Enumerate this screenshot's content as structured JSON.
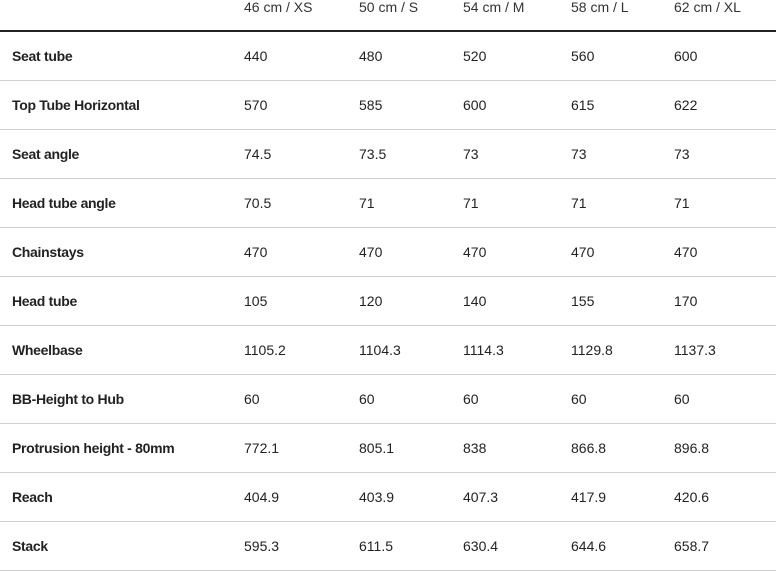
{
  "table": {
    "headers": [
      "46 cm / XS",
      "50 cm / S",
      "54 cm / M",
      "58 cm / L",
      "62 cm / XL"
    ],
    "rows": [
      {
        "label": "Seat tube",
        "values": [
          "440",
          "480",
          "520",
          "560",
          "600"
        ]
      },
      {
        "label": "Top Tube Horizontal",
        "values": [
          "570",
          "585",
          "600",
          "615",
          "622"
        ]
      },
      {
        "label": "Seat angle",
        "values": [
          "74.5",
          "73.5",
          "73",
          "73",
          "73"
        ]
      },
      {
        "label": "Head tube angle",
        "values": [
          "70.5",
          "71",
          "71",
          "71",
          "71"
        ]
      },
      {
        "label": "Chainstays",
        "values": [
          "470",
          "470",
          "470",
          "470",
          "470"
        ]
      },
      {
        "label": "Head tube",
        "values": [
          "105",
          "120",
          "140",
          "155",
          "170"
        ]
      },
      {
        "label": "Wheelbase",
        "values": [
          "1105.2",
          "1104.3",
          "1114.3",
          "1129.8",
          "1137.3"
        ]
      },
      {
        "label": "BB-Height to Hub",
        "values": [
          "60",
          "60",
          "60",
          "60",
          "60"
        ]
      },
      {
        "label": "Protrusion height - 80mm",
        "values": [
          "772.1",
          "805.1",
          "838",
          "866.8",
          "896.8"
        ]
      },
      {
        "label": "Reach",
        "values": [
          "404.9",
          "403.9",
          "407.3",
          "417.9",
          "420.6"
        ]
      },
      {
        "label": "Stack",
        "values": [
          "595.3",
          "611.5",
          "630.4",
          "644.6",
          "658.7"
        ]
      }
    ]
  }
}
